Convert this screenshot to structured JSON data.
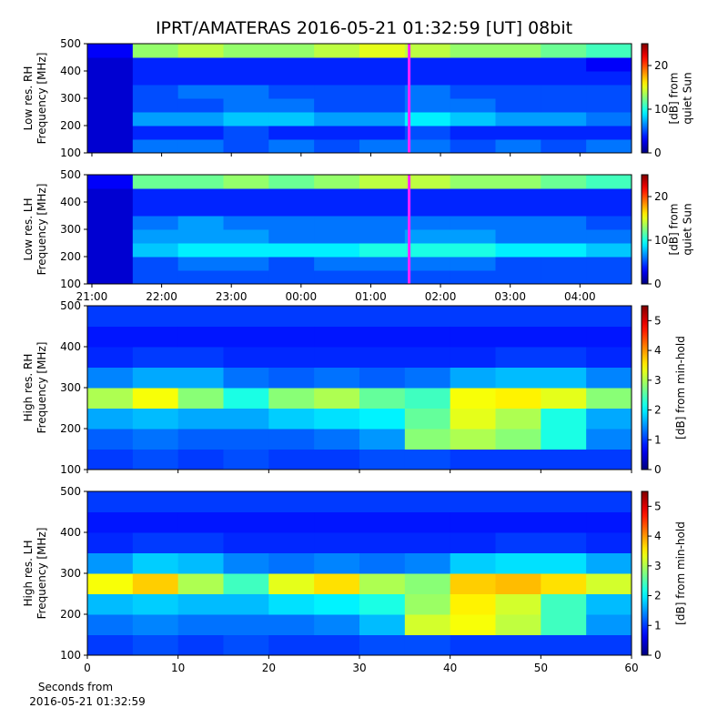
{
  "title": "IPRT/AMATERAS 2016-05-21 01:32:59 [UT]   08bit",
  "chart_data": [
    {
      "type": "heatmap",
      "ylabel": [
        "Low res. RH",
        "Frequency [MHz]"
      ],
      "colormap": "jet",
      "ylim": [
        100,
        500
      ],
      "yticks": [
        100,
        200,
        300,
        400,
        500
      ],
      "xlim": [
        20.935,
        28.74
      ],
      "marker": 25.55,
      "marker_color": "#ff22ff",
      "clim": [
        0,
        25
      ],
      "cticks": [
        0,
        10,
        20
      ],
      "clabel": [
        "[dB] from",
        "quiet Sun"
      ],
      "z": [
        [
          2,
          6,
          6,
          5,
          6,
          5,
          6,
          6,
          5,
          6,
          5,
          6
        ],
        [
          2,
          4,
          4,
          5,
          4,
          4,
          4,
          5,
          4,
          4,
          4,
          4
        ],
        [
          2,
          7,
          7,
          8,
          8,
          7,
          7,
          9,
          8,
          7,
          7,
          6
        ],
        [
          2,
          5,
          5,
          6,
          6,
          5,
          5,
          6,
          6,
          5,
          5,
          5
        ],
        [
          2,
          5,
          6,
          6,
          5,
          5,
          5,
          6,
          5,
          5,
          5,
          5
        ],
        [
          2,
          4,
          4,
          4,
          4,
          4,
          4,
          4,
          4,
          4,
          4,
          4
        ],
        [
          2,
          4,
          4,
          4,
          4,
          4,
          4,
          4,
          4,
          4,
          4,
          3
        ],
        [
          3,
          13,
          14,
          13,
          13,
          14,
          15,
          14,
          13,
          13,
          12,
          11
        ]
      ]
    },
    {
      "type": "heatmap",
      "ylabel": [
        "Low res. LH",
        "Frequency [MHz]"
      ],
      "colormap": "jet",
      "ylim": [
        100,
        500
      ],
      "yticks": [
        100,
        200,
        300,
        400,
        500
      ],
      "xlim": [
        20.935,
        28.74
      ],
      "xticks": [
        {
          "value": 21,
          "label": "21:00"
        },
        {
          "value": 22,
          "label": "22:00"
        },
        {
          "value": 23,
          "label": "23:00"
        },
        {
          "value": 24,
          "label": "00:00"
        },
        {
          "value": 25,
          "label": "01:00"
        },
        {
          "value": 26,
          "label": "02:00"
        },
        {
          "value": 27,
          "label": "03:00"
        },
        {
          "value": 28,
          "label": "04:00"
        }
      ],
      "marker": 25.55,
      "marker_color": "#ff22ff",
      "clim": [
        0,
        25
      ],
      "cticks": [
        0,
        10,
        20
      ],
      "clabel": [
        "[dB] from",
        "quiet Sun"
      ],
      "z": [
        [
          2,
          5,
          5,
          5,
          5,
          5,
          5,
          5,
          5,
          5,
          5,
          5
        ],
        [
          2,
          5,
          6,
          6,
          5,
          6,
          6,
          6,
          6,
          5,
          5,
          5
        ],
        [
          2,
          8,
          9,
          9,
          9,
          9,
          10,
          10,
          10,
          9,
          9,
          8
        ],
        [
          2,
          7,
          7,
          7,
          6,
          6,
          6,
          7,
          7,
          6,
          6,
          6
        ],
        [
          2,
          6,
          7,
          6,
          6,
          6,
          6,
          6,
          6,
          6,
          6,
          5
        ],
        [
          2,
          4,
          4,
          4,
          4,
          4,
          4,
          4,
          4,
          4,
          4,
          4
        ],
        [
          2,
          4,
          4,
          4,
          4,
          4,
          4,
          4,
          4,
          4,
          4,
          4
        ],
        [
          3,
          12,
          12,
          13,
          12,
          13,
          14,
          14,
          13,
          13,
          12,
          11
        ]
      ]
    },
    {
      "type": "heatmap",
      "ylabel": [
        "High res. RH",
        "Frequency [MHz]"
      ],
      "colormap": "jet",
      "ylim": [
        100,
        500
      ],
      "yticks": [
        100,
        200,
        300,
        400,
        500
      ],
      "xlim": [
        0,
        60
      ],
      "clim": [
        0,
        5.5
      ],
      "cticks": [
        0,
        1,
        2,
        3,
        4,
        5
      ],
      "clabel": [
        "[dB] from min-hold"
      ],
      "z": [
        [
          1.0,
          1.1,
          1.0,
          1.1,
          1.0,
          1.0,
          1.1,
          1.1,
          1.0,
          1.0,
          1.0,
          1.0
        ],
        [
          1.2,
          1.3,
          1.2,
          1.2,
          1.2,
          1.3,
          1.5,
          2.8,
          3.0,
          2.8,
          2.2,
          1.4
        ],
        [
          1.6,
          1.7,
          1.6,
          1.6,
          1.8,
          1.9,
          2.0,
          2.6,
          3.3,
          3.0,
          2.2,
          1.6
        ],
        [
          3.0,
          3.4,
          2.8,
          2.2,
          2.8,
          3.0,
          2.6,
          2.4,
          3.4,
          3.5,
          3.3,
          2.8
        ],
        [
          1.4,
          1.6,
          1.6,
          1.3,
          1.2,
          1.3,
          1.2,
          1.3,
          1.6,
          1.7,
          1.7,
          1.4
        ],
        [
          0.9,
          1.0,
          1.0,
          0.9,
          0.9,
          0.9,
          0.9,
          0.9,
          0.9,
          1.0,
          1.0,
          0.9
        ],
        [
          0.8,
          0.8,
          0.8,
          0.8,
          0.8,
          0.8,
          0.8,
          0.8,
          0.8,
          0.8,
          0.8,
          0.8
        ],
        [
          1.0,
          1.0,
          1.0,
          1.0,
          1.0,
          1.0,
          1.0,
          1.0,
          1.0,
          1.0,
          1.0,
          1.0
        ]
      ]
    },
    {
      "type": "heatmap",
      "ylabel": [
        "High res. LH",
        "Frequency [MHz]"
      ],
      "colormap": "jet",
      "ylim": [
        100,
        500
      ],
      "yticks": [
        100,
        200,
        300,
        400,
        500
      ],
      "xlim": [
        0,
        60
      ],
      "xticks": [
        0,
        10,
        20,
        30,
        40,
        50,
        60
      ],
      "xlabel": [
        "Seconds from",
        "2016-05-21 01:32:59"
      ],
      "clim": [
        0,
        5.5
      ],
      "cticks": [
        0,
        1,
        2,
        3,
        4,
        5
      ],
      "clabel": [
        "[dB] from min-hold"
      ],
      "z": [
        [
          1.0,
          1.1,
          1.0,
          1.1,
          1.0,
          1.0,
          1.1,
          1.1,
          1.0,
          1.0,
          1.0,
          1.0
        ],
        [
          1.3,
          1.4,
          1.3,
          1.3,
          1.3,
          1.4,
          1.7,
          3.2,
          3.4,
          3.1,
          2.4,
          1.5
        ],
        [
          1.7,
          1.8,
          1.7,
          1.7,
          1.9,
          2.0,
          2.2,
          2.9,
          3.5,
          3.2,
          2.4,
          1.7
        ],
        [
          3.4,
          3.7,
          3.0,
          2.4,
          3.3,
          3.6,
          3.0,
          2.8,
          3.7,
          3.8,
          3.6,
          3.2
        ],
        [
          1.5,
          1.8,
          1.7,
          1.4,
          1.3,
          1.4,
          1.3,
          1.4,
          1.8,
          1.9,
          1.9,
          1.6
        ],
        [
          0.9,
          1.0,
          1.0,
          0.9,
          0.9,
          0.9,
          0.9,
          0.9,
          0.9,
          1.0,
          1.0,
          0.9
        ],
        [
          0.8,
          0.8,
          0.8,
          0.8,
          0.8,
          0.8,
          0.8,
          0.8,
          0.8,
          0.8,
          0.8,
          0.8
        ],
        [
          1.0,
          1.0,
          1.0,
          1.0,
          1.0,
          1.0,
          1.0,
          1.0,
          1.0,
          1.0,
          1.0,
          1.0
        ]
      ]
    }
  ]
}
